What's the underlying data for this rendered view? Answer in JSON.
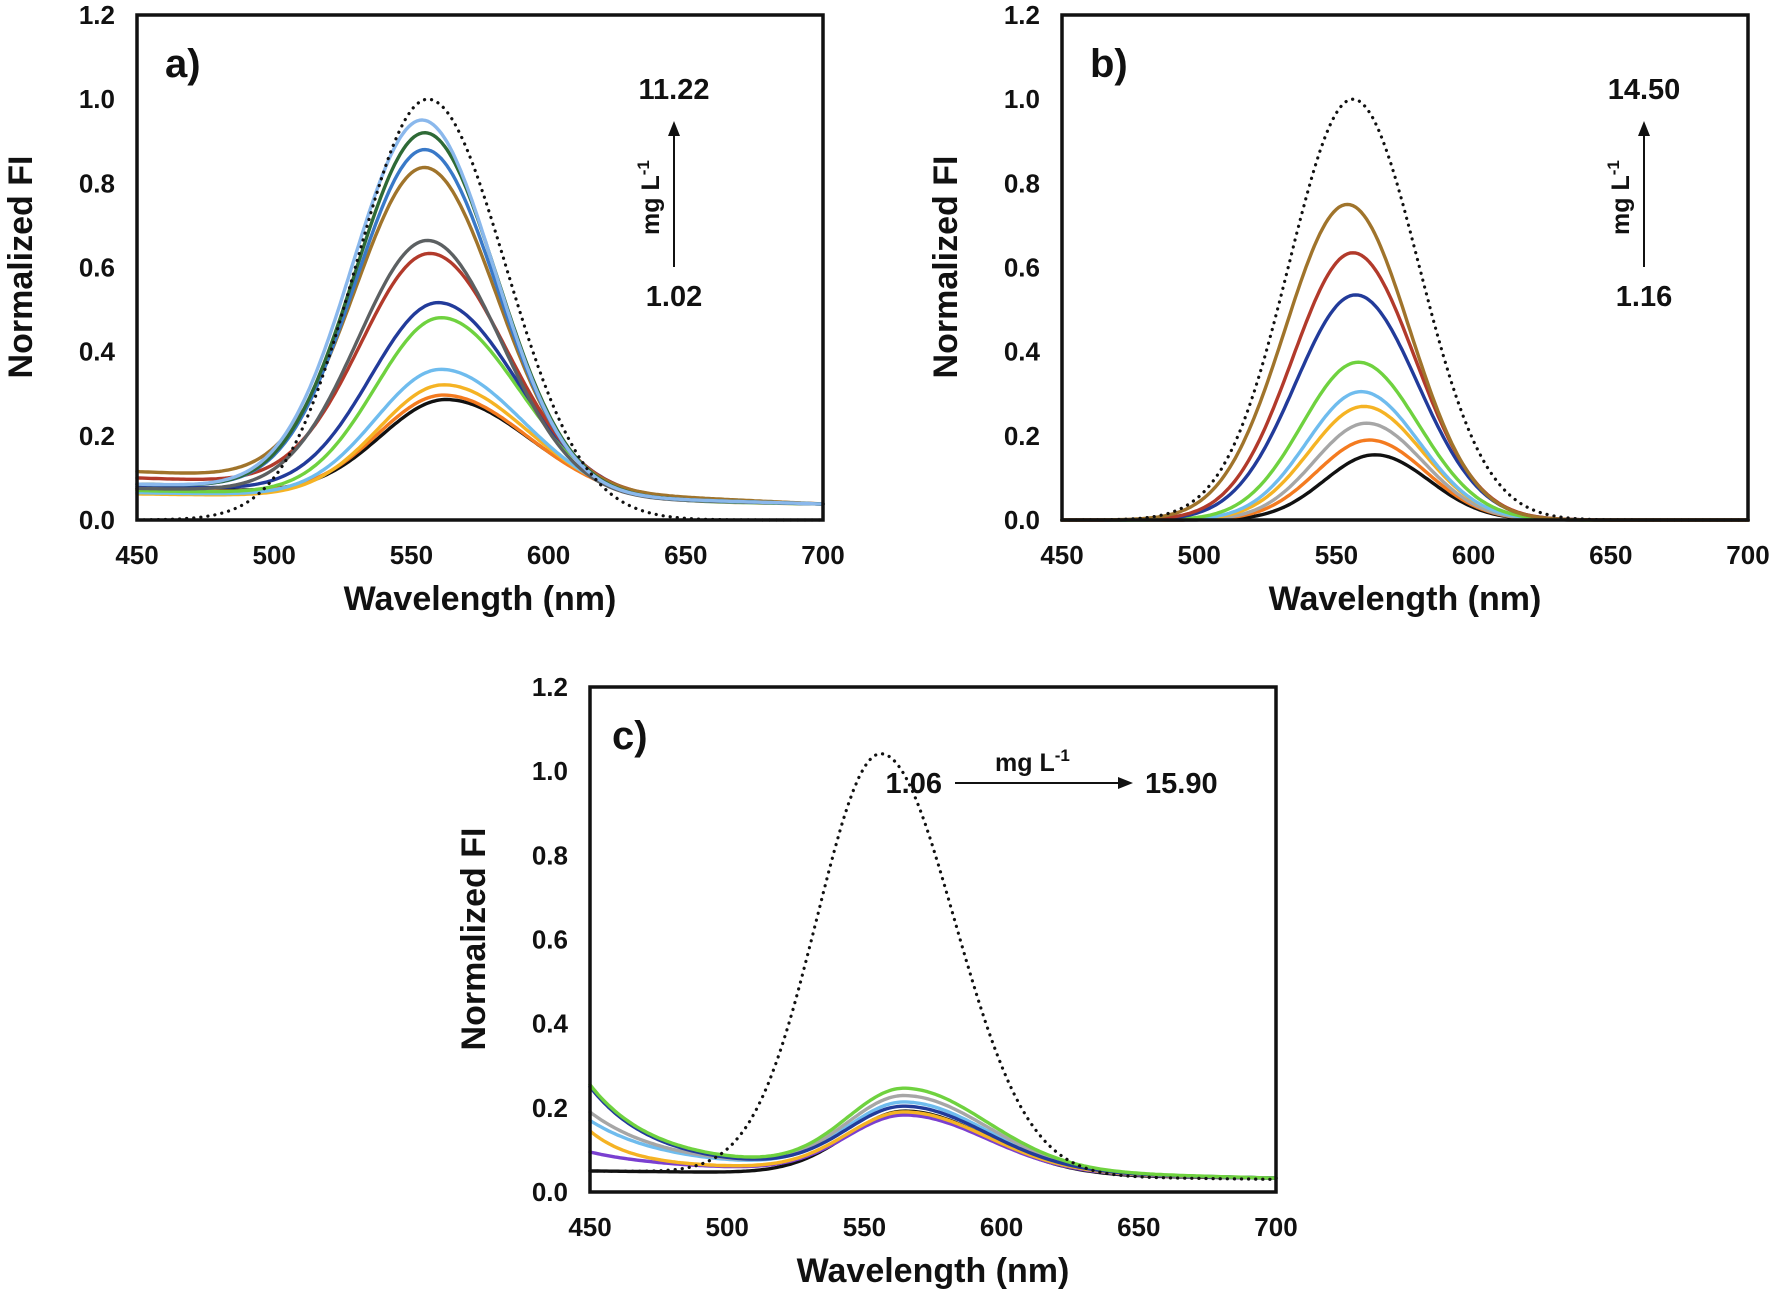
{
  "colors": {
    "black": "#111111",
    "orange": "#f47b20",
    "gold": "#f5b324",
    "lightblue": "#6fbcee",
    "green": "#6fd23f",
    "navy": "#223b9a",
    "red": "#b23a2b",
    "gray": "#5c6062",
    "brown": "#a0742b",
    "blue": "#3979c8",
    "darkgreen": "#2e6a36",
    "paleblue": "#8ab8ec",
    "silver": "#a6a6a6",
    "purple": "#7a3fd0",
    "dotted": "#111111"
  },
  "chart_data": [
    {
      "type": "line",
      "panel_label": "a)",
      "xlabel": "Wavelength (nm)",
      "ylabel": "Normalized FI",
      "xlim": [
        450,
        700
      ],
      "ylim": [
        0,
        1.2
      ],
      "xticks": [
        "450",
        "500",
        "550",
        "600",
        "650",
        "700"
      ],
      "yticks": [
        "0.0",
        "0.2",
        "0.4",
        "0.6",
        "0.8",
        "1.0",
        "1.2"
      ],
      "annotation": {
        "orientation": "vertical",
        "low": "1.02",
        "high": "11.22",
        "unit_base": "mg L",
        "unit_sup": "-1"
      },
      "series": [
        {
          "name": "reference",
          "style": "dotted",
          "color": "dotted",
          "peak": 1.0,
          "center": 556,
          "width_left": 37,
          "width_right": 40,
          "baseline_start": 0.0,
          "baseline_end": 0.0
        },
        {
          "name": "c1",
          "color": "black",
          "peak": 0.228,
          "center": 563,
          "width_left": 34,
          "width_right": 43,
          "baseline_start": 0.075,
          "baseline_end": 0.038
        },
        {
          "name": "c2",
          "color": "orange",
          "peak": 0.24,
          "center": 562,
          "width_left": 34,
          "width_right": 43,
          "baseline_start": 0.072,
          "baseline_end": 0.038
        },
        {
          "name": "c3",
          "color": "gold",
          "peak": 0.27,
          "center": 562,
          "width_left": 34,
          "width_right": 43,
          "baseline_start": 0.062,
          "baseline_end": 0.038
        },
        {
          "name": "c4",
          "color": "lightblue",
          "peak": 0.305,
          "center": 561,
          "width_left": 34,
          "width_right": 42,
          "baseline_start": 0.065,
          "baseline_end": 0.038
        },
        {
          "name": "c5",
          "color": "green",
          "peak": 0.425,
          "center": 561,
          "width_left": 34,
          "width_right": 40,
          "baseline_start": 0.07,
          "baseline_end": 0.038
        },
        {
          "name": "c6",
          "color": "navy",
          "peak": 0.455,
          "center": 560,
          "width_left": 35,
          "width_right": 40,
          "baseline_start": 0.08,
          "baseline_end": 0.038
        },
        {
          "name": "c7",
          "color": "red",
          "peak": 0.56,
          "center": 557,
          "width_left": 36,
          "width_right": 39,
          "baseline_start": 0.1,
          "baseline_end": 0.038
        },
        {
          "name": "c8",
          "color": "gray",
          "peak": 0.605,
          "center": 556,
          "width_left": 36,
          "width_right": 38,
          "baseline_start": 0.075,
          "baseline_end": 0.038
        },
        {
          "name": "c9",
          "color": "brown",
          "peak": 0.755,
          "center": 555,
          "width_left": 36,
          "width_right": 37,
          "baseline_start": 0.115,
          "baseline_end": 0.038
        },
        {
          "name": "c10",
          "color": "blue",
          "peak": 0.815,
          "center": 555,
          "width_left": 36,
          "width_right": 37,
          "baseline_start": 0.085,
          "baseline_end": 0.038
        },
        {
          "name": "c11",
          "color": "darkgreen",
          "peak": 0.855,
          "center": 555,
          "width_left": 36,
          "width_right": 37,
          "baseline_start": 0.085,
          "baseline_end": 0.038
        },
        {
          "name": "c12",
          "color": "paleblue",
          "peak": 0.885,
          "center": 554,
          "width_left": 36,
          "width_right": 37,
          "baseline_start": 0.085,
          "baseline_end": 0.038
        }
      ]
    },
    {
      "type": "line",
      "panel_label": "b)",
      "xlabel": "Wavelength (nm)",
      "ylabel": "Normalized FI",
      "xlim": [
        450,
        700
      ],
      "ylim": [
        0,
        1.2
      ],
      "xticks": [
        "450",
        "500",
        "550",
        "600",
        "650",
        "700"
      ],
      "yticks": [
        "0.0",
        "0.2",
        "0.4",
        "0.6",
        "0.8",
        "1.0",
        "1.2"
      ],
      "annotation": {
        "orientation": "vertical",
        "low": "1.16",
        "high": "14.50",
        "unit_base": "mg L",
        "unit_sup": "-1"
      },
      "series": [
        {
          "name": "reference",
          "style": "dotted",
          "color": "dotted",
          "peak": 1.0,
          "center": 556,
          "width_left": 33,
          "width_right": 34,
          "baseline_start": 0.0,
          "baseline_end": 0.0
        },
        {
          "name": "c1",
          "color": "black",
          "peak": 0.155,
          "center": 564,
          "width_left": 26,
          "width_right": 28,
          "baseline_start": 0.0,
          "baseline_end": 0.0
        },
        {
          "name": "c2",
          "color": "orange",
          "peak": 0.19,
          "center": 562,
          "width_left": 27,
          "width_right": 29,
          "baseline_start": 0.0,
          "baseline_end": 0.0
        },
        {
          "name": "c3",
          "color": "silver",
          "peak": 0.23,
          "center": 561,
          "width_left": 27,
          "width_right": 29,
          "baseline_start": 0.0,
          "baseline_end": 0.0
        },
        {
          "name": "c4",
          "color": "gold",
          "peak": 0.27,
          "center": 560,
          "width_left": 28,
          "width_right": 30,
          "baseline_start": 0.0,
          "baseline_end": 0.0
        },
        {
          "name": "c5",
          "color": "lightblue",
          "peak": 0.305,
          "center": 559,
          "width_left": 28,
          "width_right": 30,
          "baseline_start": 0.0,
          "baseline_end": 0.0
        },
        {
          "name": "c6",
          "color": "green",
          "peak": 0.375,
          "center": 558,
          "width_left": 29,
          "width_right": 31,
          "baseline_start": 0.0,
          "baseline_end": 0.0
        },
        {
          "name": "c7",
          "color": "navy",
          "peak": 0.535,
          "center": 557,
          "width_left": 31,
          "width_right": 32,
          "baseline_start": 0.0,
          "baseline_end": 0.0
        },
        {
          "name": "c8",
          "color": "red",
          "peak": 0.635,
          "center": 556,
          "width_left": 31,
          "width_right": 32,
          "baseline_start": 0.0,
          "baseline_end": 0.0
        },
        {
          "name": "c9",
          "color": "brown",
          "peak": 0.75,
          "center": 554,
          "width_left": 32,
          "width_right": 32,
          "baseline_start": 0.0,
          "baseline_end": 0.0
        }
      ]
    },
    {
      "type": "line",
      "panel_label": "c)",
      "xlabel": "Wavelength (nm)",
      "ylabel": "Normalized FI",
      "xlim": [
        450,
        700
      ],
      "ylim": [
        0,
        1.2
      ],
      "xticks": [
        "450",
        "500",
        "550",
        "600",
        "650",
        "700"
      ],
      "yticks": [
        "0.0",
        "0.2",
        "0.4",
        "0.6",
        "0.8",
        "1.0",
        "1.2"
      ],
      "annotation": {
        "orientation": "horizontal",
        "low": "1.06",
        "high": "15.90",
        "unit_base": "mg L",
        "unit_sup": "-1"
      },
      "series": [
        {
          "name": "reference",
          "style": "dotted",
          "color": "dotted",
          "peak": 1.0,
          "center": 556,
          "width_left": 33,
          "width_right": 38,
          "baseline_start": 0.05,
          "baseline_end": 0.03
        },
        {
          "name": "c1",
          "color": "black",
          "peak": 0.15,
          "center": 565,
          "width_left": 30,
          "width_right": 42,
          "baseline_start": 0.05,
          "baseline_end": 0.033,
          "shoulder": 0.0,
          "shoulder_decay": 30
        },
        {
          "name": "c2",
          "color": "purple",
          "peak": 0.135,
          "center": 565,
          "width_left": 30,
          "width_right": 42,
          "baseline_start": 0.06,
          "baseline_end": 0.033,
          "shoulder": 0.035,
          "shoulder_decay": 25
        },
        {
          "name": "c3",
          "color": "gold",
          "peak": 0.14,
          "center": 565,
          "width_left": 30,
          "width_right": 42,
          "baseline_start": 0.065,
          "baseline_end": 0.033,
          "shoulder": 0.08,
          "shoulder_decay": 15
        },
        {
          "name": "c4",
          "color": "lightblue",
          "peak": 0.16,
          "center": 565,
          "width_left": 30,
          "width_right": 42,
          "baseline_start": 0.07,
          "baseline_end": 0.033,
          "shoulder": 0.1,
          "shoulder_decay": 25
        },
        {
          "name": "c5",
          "color": "silver",
          "peak": 0.175,
          "center": 565,
          "width_left": 30,
          "width_right": 42,
          "baseline_start": 0.07,
          "baseline_end": 0.033,
          "shoulder": 0.12,
          "shoulder_decay": 25
        },
        {
          "name": "c6",
          "color": "navy",
          "peak": 0.15,
          "center": 565,
          "width_left": 30,
          "width_right": 42,
          "baseline_start": 0.07,
          "baseline_end": 0.033,
          "shoulder": 0.18,
          "shoulder_decay": 22
        },
        {
          "name": "c7",
          "color": "green",
          "peak": 0.19,
          "center": 565,
          "width_left": 30,
          "width_right": 42,
          "baseline_start": 0.075,
          "baseline_end": 0.033,
          "shoulder": 0.18,
          "shoulder_decay": 22
        }
      ]
    }
  ]
}
